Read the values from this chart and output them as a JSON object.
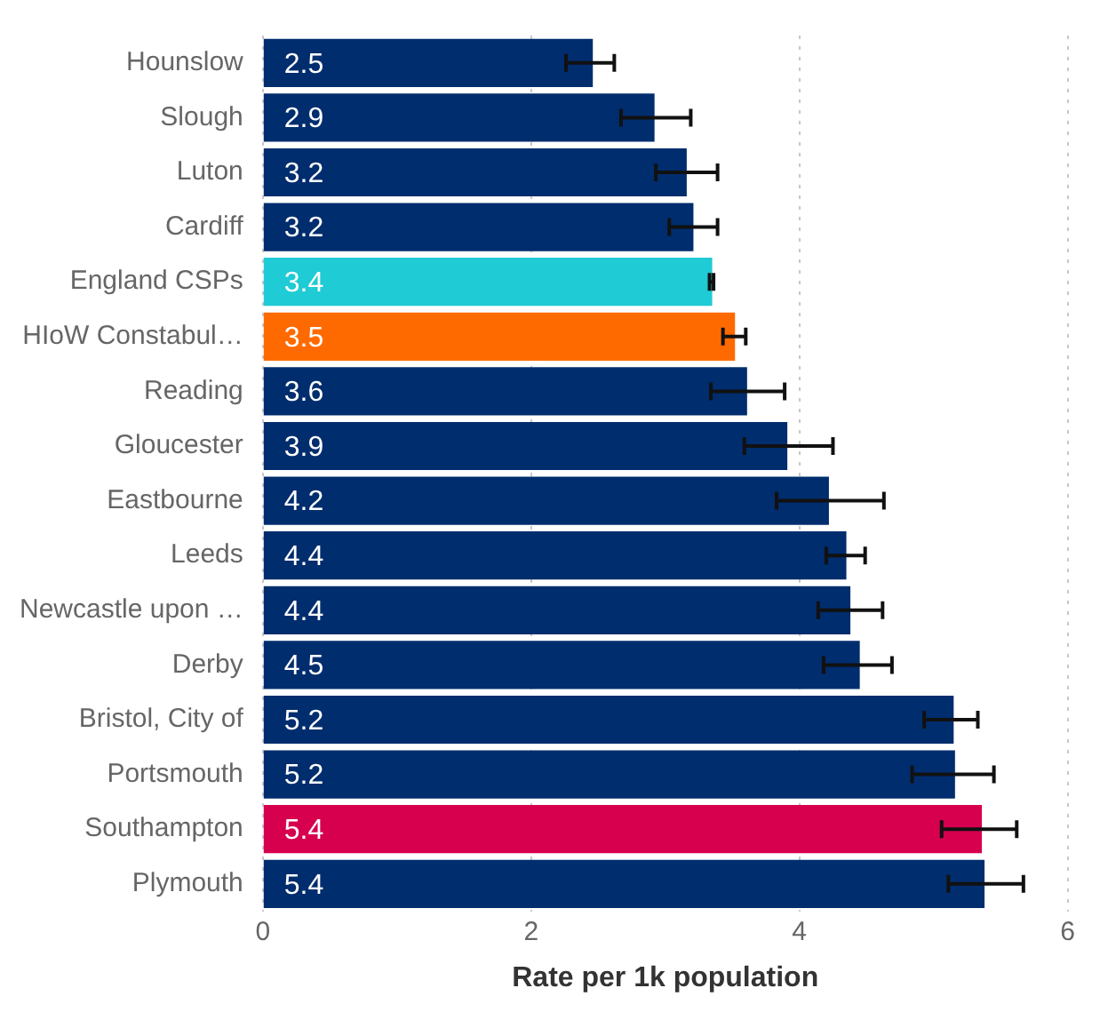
{
  "chart_data": {
    "type": "bar",
    "orientation": "horizontal",
    "xlabel": "Rate per 1k population",
    "categories": [
      "Hounslow",
      "Slough",
      "Luton",
      "Cardiff",
      "England CSPs",
      "HIoW Constabul…",
      "Reading",
      "Gloucester",
      "Eastbourne",
      "Leeds",
      "Newcastle upon …",
      "Derby",
      "Bristol, City of",
      "Portsmouth",
      "Southampton",
      "Plymouth"
    ],
    "values": [
      2.46,
      2.92,
      3.16,
      3.21,
      3.35,
      3.52,
      3.61,
      3.91,
      4.22,
      4.35,
      4.38,
      4.45,
      5.15,
      5.16,
      5.36,
      5.38
    ],
    "value_labels": [
      "2.5",
      "2.9",
      "3.2",
      "3.2",
      "3.4",
      "3.5",
      "3.6",
      "3.9",
      "4.2",
      "4.4",
      "4.4",
      "4.5",
      "5.2",
      "5.2",
      "5.4",
      "5.4"
    ],
    "errors": [
      [
        2.26,
        2.62
      ],
      [
        2.67,
        3.19
      ],
      [
        2.93,
        3.39
      ],
      [
        3.03,
        3.39
      ],
      [
        3.33,
        3.36
      ],
      [
        3.43,
        3.6
      ],
      [
        3.34,
        3.89
      ],
      [
        3.59,
        4.25
      ],
      [
        3.83,
        4.63
      ],
      [
        4.2,
        4.49
      ],
      [
        4.14,
        4.62
      ],
      [
        4.18,
        4.69
      ],
      [
        4.93,
        5.33
      ],
      [
        4.84,
        5.45
      ],
      [
        5.06,
        5.62
      ],
      [
        5.11,
        5.67
      ]
    ],
    "colors": [
      "#002d6e",
      "#002d6e",
      "#002d6e",
      "#002d6e",
      "#1fcbd4",
      "#ff6a00",
      "#002d6e",
      "#002d6e",
      "#002d6e",
      "#002d6e",
      "#002d6e",
      "#002d6e",
      "#002d6e",
      "#002d6e",
      "#d6004f",
      "#002d6e"
    ],
    "xlim": [
      0,
      6
    ],
    "xticks": [
      0,
      2,
      4,
      6
    ],
    "grid": "x"
  }
}
